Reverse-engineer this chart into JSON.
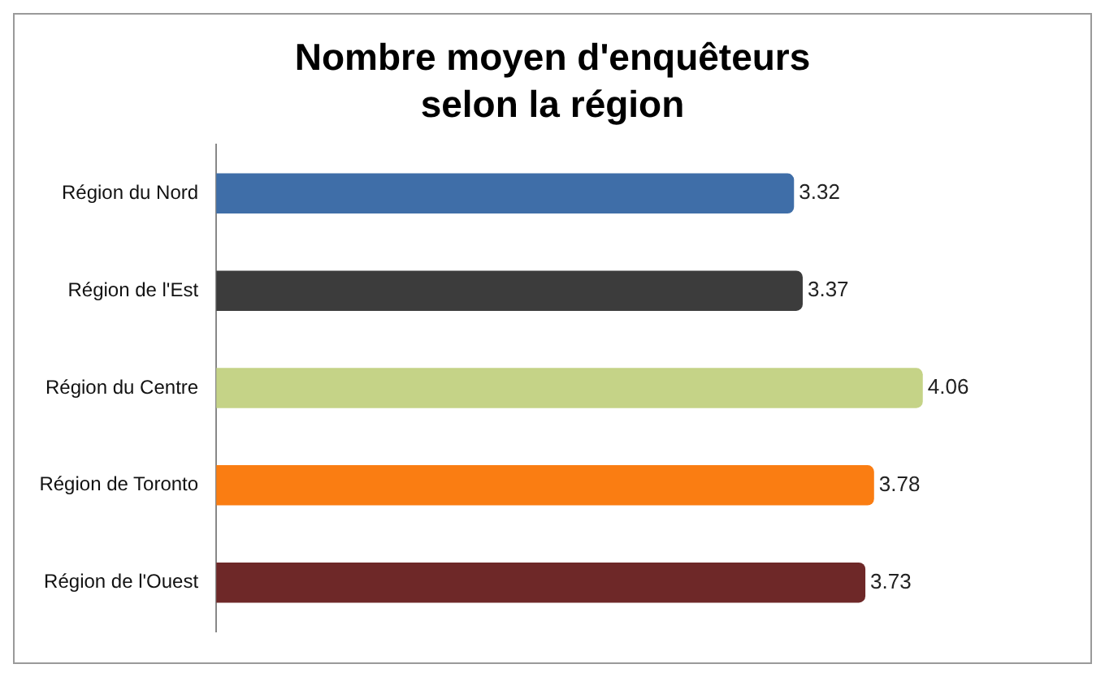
{
  "chart_data": {
    "type": "bar",
    "orientation": "horizontal",
    "title": "Nombre moyen d'enquêteurs selon la région",
    "categories": [
      "Région du Nord",
      "Région de l'Est",
      "Région du Centre",
      "Région de Toronto",
      "Région de l'Ouest"
    ],
    "values": [
      3.32,
      3.37,
      4.06,
      3.78,
      3.73
    ],
    "colors": [
      "#3f6ea8",
      "#3c3c3c",
      "#c5d387",
      "#fa7d12",
      "#6e2828"
    ],
    "data_labels": true
  }
}
